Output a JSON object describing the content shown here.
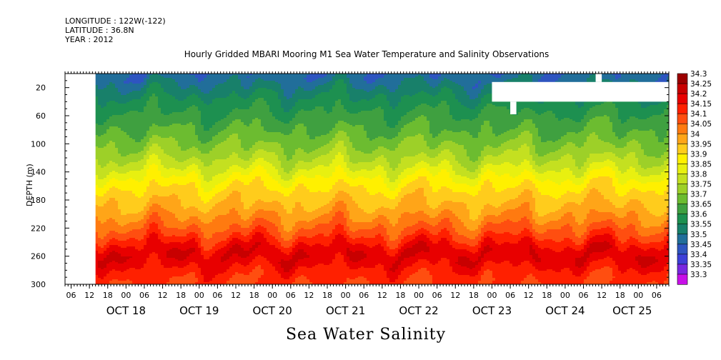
{
  "header": {
    "longitude": "LONGITUDE : 122W(-122)",
    "latitude": "LATITUDE : 36.8N",
    "year": "YEAR : 2012"
  },
  "chart_data": {
    "type": "heatmap",
    "title": "Hourly Gridded MBARI Mooring M1 Sea Water Temperature and Salinity Observations",
    "bottom_title": "Sea Water Salinity",
    "ylabel": "DEPTH (m)",
    "ylim": [
      300,
      0
    ],
    "y_ticks": [
      20,
      60,
      100,
      140,
      180,
      220,
      260,
      300
    ],
    "x_range_hours": [
      "2012-10-17 04:00",
      "2012-10-25 10:00"
    ],
    "x_hour_ticks": [
      "06",
      "12",
      "18",
      "00",
      "06",
      "12",
      "18",
      "00",
      "06",
      "12",
      "18",
      "00",
      "06",
      "12",
      "18",
      "00",
      "06",
      "12",
      "18",
      "00",
      "06",
      "12",
      "18",
      "00",
      "06",
      "12",
      "18",
      "00",
      "06",
      "12",
      "18",
      "00",
      "06"
    ],
    "x_date_labels": [
      "OCT 18",
      "OCT 19",
      "OCT 20",
      "OCT 21",
      "OCT 22",
      "OCT 23",
      "OCT 24",
      "OCT 25"
    ],
    "colorbar_levels": [
      "34.3",
      "34.25",
      "34.2",
      "34.15",
      "34.1",
      "34.05",
      "34",
      "33.95",
      "33.9",
      "33.85",
      "33.8",
      "33.75",
      "33.7",
      "33.65",
      "33.6",
      "33.55",
      "33.5",
      "33.45",
      "33.4",
      "33.35",
      "33.3"
    ],
    "colorbar_colors": [
      "#9b0000",
      "#c80000",
      "#e80000",
      "#ff2000",
      "#ff4e10",
      "#ff7a10",
      "#ffa518",
      "#ffcc1c",
      "#fff000",
      "#e8f010",
      "#c4e020",
      "#9dd028",
      "#6cbc30",
      "#3fa040",
      "#1d9050",
      "#18806a",
      "#216e9a",
      "#2e55c0",
      "#3d40d8",
      "#7828e0",
      "#c810e8"
    ],
    "data_start": "2012-10-17 14:00",
    "missing_regions": [
      {
        "x_start": "2012-10-17 04:00",
        "x_end": "2012-10-17 14:00",
        "depth_start": 0,
        "depth_end": 300
      },
      {
        "x_start": "2012-10-23 00:00",
        "x_end": "2012-10-25 10:00",
        "depth_start": 12,
        "depth_end": 40
      },
      {
        "x_start": "2012-10-24 10:00",
        "x_end": "2012-10-24 12:00",
        "depth_start": 0,
        "depth_end": 12
      },
      {
        "x_start": "2012-10-23 06:00",
        "x_end": "2012-10-23 08:00",
        "depth_start": 40,
        "depth_end": 58
      }
    ],
    "profile_depths": [
      5,
      15,
      25,
      35,
      45,
      55,
      70,
      90,
      110,
      130,
      150,
      170,
      190,
      210,
      230,
      245,
      255,
      265,
      275,
      285,
      295
    ],
    "profile_salinity": [
      33.46,
      33.5,
      33.53,
      33.56,
      33.58,
      33.6,
      33.63,
      33.67,
      33.72,
      33.78,
      33.86,
      33.92,
      33.96,
      34.02,
      34.09,
      34.16,
      34.2,
      34.19,
      34.15,
      34.12,
      34.1
    ]
  }
}
